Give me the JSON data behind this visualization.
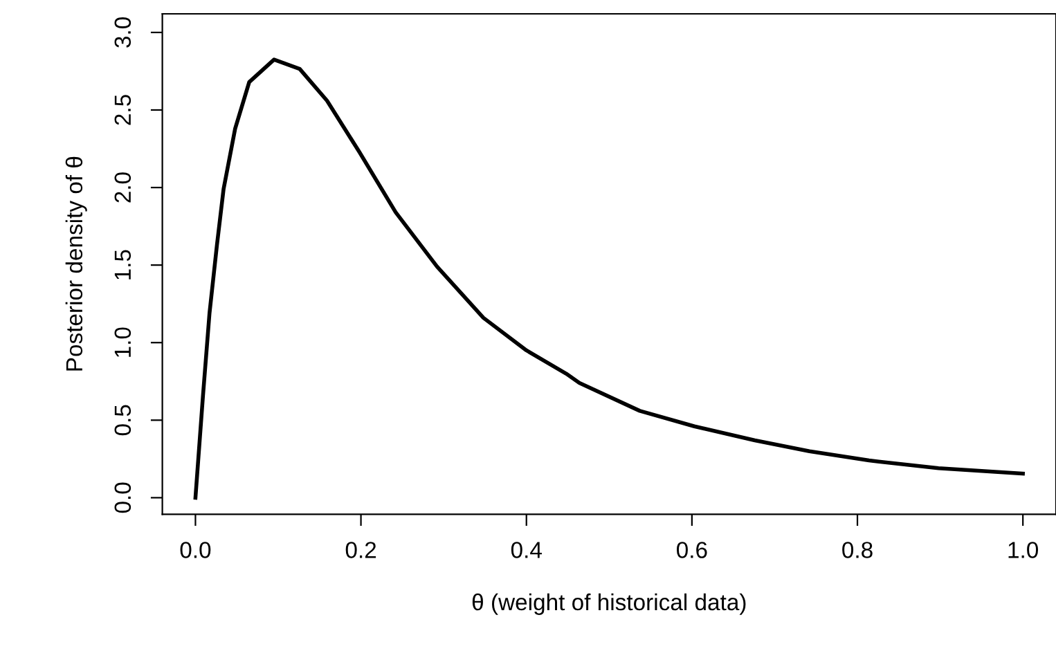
{
  "chart_data": {
    "type": "line",
    "xlabel": "θ (weight of historical data)",
    "ylabel": "Posterior density of θ",
    "x": [
      0,
      0.009,
      0.017,
      0.026,
      0.034,
      0.048,
      0.065,
      0.095,
      0.126,
      0.159,
      0.198,
      0.242,
      0.292,
      0.348,
      0.4,
      0.448,
      0.464,
      0.537,
      0.603,
      0.676,
      0.742,
      0.814,
      0.898,
      1.0
    ],
    "series": [
      {
        "color": "#000000",
        "values": [
          0,
          0.65,
          1.19,
          1.63,
          1.99,
          2.38,
          2.68,
          2.825,
          2.765,
          2.56,
          2.23,
          1.84,
          1.49,
          1.16,
          0.95,
          0.8,
          0.74,
          0.56,
          0.46,
          0.37,
          0.3,
          0.24,
          0.19,
          0.155
        ]
      }
    ],
    "xlim": [
      -0.04,
      1.04
    ],
    "ylim": [
      -0.107,
      3.12
    ],
    "xticks": [
      {
        "value": 0,
        "label": "0.0"
      },
      0.2,
      0.4,
      0.6,
      0.8,
      {
        "value": 1,
        "label": "1.0"
      }
    ],
    "yticks": [
      {
        "value": 0,
        "label": "0.0"
      },
      0.5,
      {
        "value": 1,
        "label": "1.0"
      },
      1.5,
      {
        "value": 2,
        "label": "2.0"
      },
      2.5,
      {
        "value": 3,
        "label": "3.0"
      }
    ],
    "grid": false,
    "legend": false,
    "line_style": "solid",
    "marker": "none"
  }
}
